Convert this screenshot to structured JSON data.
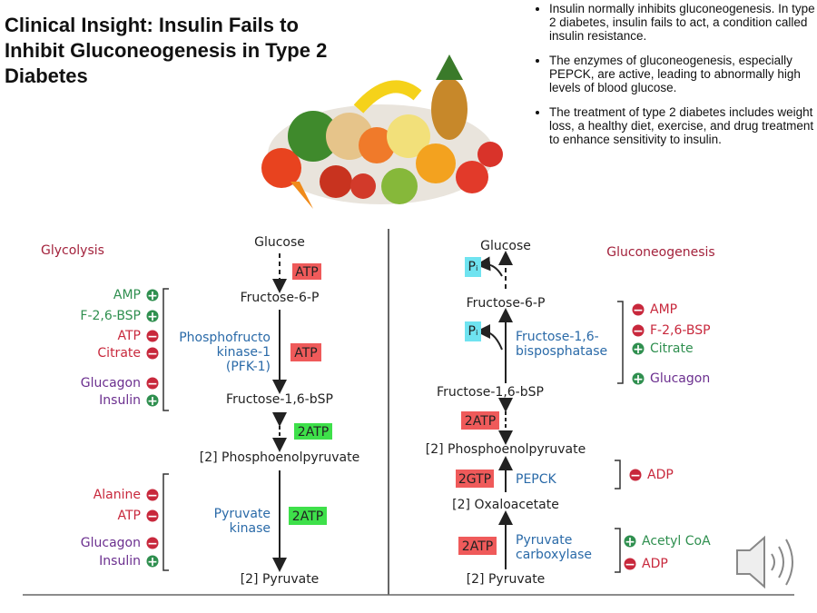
{
  "title": "Clinical Insight: Insulin Fails to Inhibit Gluconeogenesis in Type 2 Diabetes",
  "bullets": [
    "Insulin normally inhibits gluconeogenesis. In type 2 diabetes, insulin fails to act, a condition called insulin resistance.",
    "The enzymes of gluconeogenesis, especially PEPCK, are active, leading to abnormally high levels of blood glucose.",
    "The treatment of type 2 diabetes includes weight loss, a healthy diet, exercise, and drug treatment to enhance sensitivity to insulin."
  ],
  "glycolysis": {
    "title": "Glycolysis",
    "metabolites": [
      "Glucose",
      "Fructose-6-P",
      "Fructose-1,6-bSP",
      "[2] Phosphoenolpyruvate",
      "[2] Pyruvate"
    ],
    "enzymes": [
      [
        "Phosphofructo",
        "kinase-1",
        "(PFK-1)"
      ],
      [
        "Pyruvate",
        "kinase"
      ]
    ],
    "energy": [
      "ATP",
      "ATP",
      "2ATP",
      "2ATP"
    ],
    "regulators": [
      [
        {
          "name": "AMP",
          "sign": "+"
        },
        {
          "name": "F-2,6-BSP",
          "sign": "+"
        },
        {
          "name": "ATP",
          "sign": "−"
        },
        {
          "name": "Citrate",
          "sign": "−"
        },
        {
          "name": "Glucagon",
          "sign": "−"
        },
        {
          "name": "Insulin",
          "sign": "+"
        }
      ],
      [
        {
          "name": "Alanine",
          "sign": "−"
        },
        {
          "name": "ATP",
          "sign": "−"
        },
        {
          "name": "Glucagon",
          "sign": "−"
        },
        {
          "name": "Insulin",
          "sign": "+"
        }
      ]
    ]
  },
  "gluconeogenesis": {
    "title": "Gluconeogenesis",
    "metabolites": [
      "Glucose",
      "Fructose-6-P",
      "Fructose-1,6-bSP",
      "[2] Phosphoenolpyruvate",
      "[2] Oxaloacetate",
      "[2] Pyruvate"
    ],
    "phosphate": [
      "Pᵢ",
      "Pᵢ"
    ],
    "enzymes": [
      [
        "Fructose-1,6-",
        "bisposphatase"
      ],
      [
        "PEPCK"
      ],
      [
        "Pyruvate",
        "carboxylase"
      ]
    ],
    "energy": [
      "2ATP",
      "2GTP",
      "2ATP"
    ],
    "regulators": [
      [
        {
          "name": "AMP",
          "sign": "−"
        },
        {
          "name": "F-2,6-BSP",
          "sign": "−"
        },
        {
          "name": "Citrate",
          "sign": "+"
        },
        {
          "name": "Glucagon",
          "sign": "+"
        }
      ],
      [
        {
          "name": "ADP",
          "sign": "−"
        }
      ],
      [
        {
          "name": "Acetyl CoA",
          "sign": "+"
        },
        {
          "name": "ADP",
          "sign": "−"
        }
      ]
    ]
  }
}
